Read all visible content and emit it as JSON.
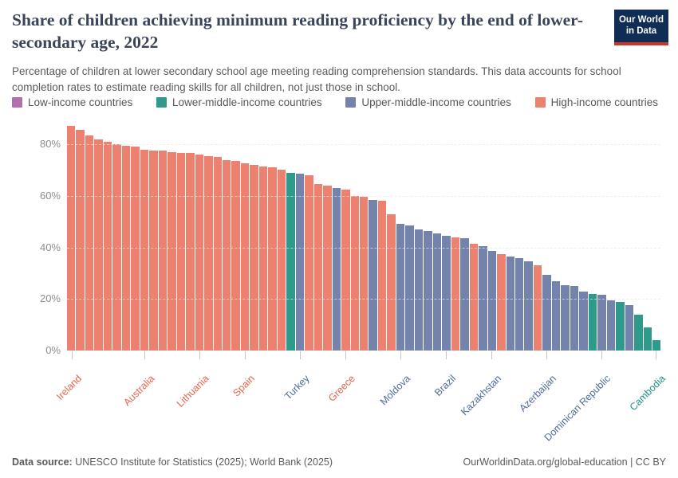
{
  "header": {
    "title": "Share of children achieving minimum reading proficiency by the end of lower-secondary age, 2022",
    "subtitle": "Percentage of children at lower secondary school age meeting reading comprehension standards. This data accounts for school completion rates to estimate reading skills for all children, not just those in school.",
    "logo": {
      "line1": "Our World",
      "line2": "in Data",
      "bg_color": "#102d55",
      "accent_color": "#c8352b"
    }
  },
  "legend": {
    "items": [
      {
        "label": "Low-income countries",
        "color": "#b16fad",
        "group": "li"
      },
      {
        "label": "Lower-middle-income countries",
        "color": "#2e9a8c",
        "group": "lm"
      },
      {
        "label": "Upper-middle-income countries",
        "color": "#7383ab",
        "group": "um"
      },
      {
        "label": "High-income countries",
        "color": "#ec8170",
        "group": "hi"
      }
    ]
  },
  "chart_data": {
    "type": "bar",
    "title": "Share of children achieving minimum reading proficiency by the end of lower-secondary age, 2022",
    "unit": "%",
    "ylim": [
      0,
      89.6
    ],
    "y_ticks": [
      0,
      20,
      40,
      60,
      80
    ],
    "y_tick_labels": [
      "0%",
      "20%",
      "40%",
      "60%",
      "80%"
    ],
    "grid": "horizontal dashed at 20/40/60/80, solid baseline at 0",
    "legend_position": "top",
    "n_bars": 65,
    "groups": {
      "li": {
        "name": "Low-income countries",
        "bar_color": "#b16fad",
        "label_color": "#9c5a97"
      },
      "lm": {
        "name": "Lower-middle-income countries",
        "bar_color": "#2e9a8c",
        "label_color": "#1a9183"
      },
      "um": {
        "name": "Upper-middle-income countries",
        "bar_color": "#7383ab",
        "label_color": "#4c6a9c"
      },
      "hi": {
        "name": "High-income countries",
        "bar_color": "#ec8170",
        "label_color": "#e8634d"
      }
    },
    "bars": [
      [
        87,
        "hi"
      ],
      [
        85.5,
        "hi"
      ],
      [
        83.5,
        "hi"
      ],
      [
        82,
        "hi"
      ],
      [
        81,
        "hi"
      ],
      [
        80,
        "hi"
      ],
      [
        79.5,
        "hi"
      ],
      [
        79,
        "hi"
      ],
      [
        78,
        "hi"
      ],
      [
        77.5,
        "hi"
      ],
      [
        77.5,
        "hi"
      ],
      [
        77,
        "hi"
      ],
      [
        76.5,
        "hi"
      ],
      [
        76.5,
        "hi"
      ],
      [
        76,
        "hi"
      ],
      [
        75.5,
        "hi"
      ],
      [
        75,
        "hi"
      ],
      [
        74,
        "hi"
      ],
      [
        73.5,
        "hi"
      ],
      [
        72.5,
        "hi"
      ],
      [
        72,
        "hi"
      ],
      [
        71.5,
        "hi"
      ],
      [
        71,
        "hi"
      ],
      [
        70,
        "hi"
      ],
      [
        69,
        "lm"
      ],
      [
        68.5,
        "um"
      ],
      [
        68,
        "hi"
      ],
      [
        64.5,
        "hi"
      ],
      [
        64,
        "hi"
      ],
      [
        63,
        "um"
      ],
      [
        62.5,
        "hi"
      ],
      [
        60,
        "hi"
      ],
      [
        59.5,
        "hi"
      ],
      [
        58.5,
        "um"
      ],
      [
        58,
        "hi"
      ],
      [
        53,
        "hi"
      ],
      [
        49,
        "um"
      ],
      [
        48.5,
        "um"
      ],
      [
        47,
        "um"
      ],
      [
        46.5,
        "um"
      ],
      [
        45.5,
        "um"
      ],
      [
        44.5,
        "um"
      ],
      [
        44,
        "hi"
      ],
      [
        43.5,
        "um"
      ],
      [
        41.5,
        "hi"
      ],
      [
        40.5,
        "um"
      ],
      [
        38.5,
        "um"
      ],
      [
        37.5,
        "hi"
      ],
      [
        36.5,
        "um"
      ],
      [
        36,
        "um"
      ],
      [
        34.5,
        "um"
      ],
      [
        33,
        "hi"
      ],
      [
        29.5,
        "um"
      ],
      [
        27,
        "um"
      ],
      [
        25.5,
        "um"
      ],
      [
        25,
        "um"
      ],
      [
        23,
        "um"
      ],
      [
        22,
        "lm"
      ],
      [
        21.5,
        "um"
      ],
      [
        19.5,
        "um"
      ],
      [
        19,
        "lm"
      ],
      [
        17.5,
        "um"
      ],
      [
        14,
        "lm"
      ],
      [
        9,
        "lm"
      ],
      [
        4,
        "lm"
      ]
    ],
    "x_tick_labels": [
      {
        "bar_index": 1,
        "label": "Ireland",
        "group": "hi"
      },
      {
        "bar_index": 9,
        "label": "Australia",
        "group": "hi"
      },
      {
        "bar_index": 15,
        "label": "Lithuania",
        "group": "hi"
      },
      {
        "bar_index": 20,
        "label": "Spain",
        "group": "hi"
      },
      {
        "bar_index": 26,
        "label": "Turkey",
        "group": "um"
      },
      {
        "bar_index": 31,
        "label": "Greece",
        "group": "hi"
      },
      {
        "bar_index": 37,
        "label": "Moldova",
        "group": "um"
      },
      {
        "bar_index": 42,
        "label": "Brazil",
        "group": "um"
      },
      {
        "bar_index": 47,
        "label": "Kazakhstan",
        "group": "um"
      },
      {
        "bar_index": 53,
        "label": "Azerbaijan",
        "group": "um"
      },
      {
        "bar_index": 59,
        "label": "Dominican Republic",
        "group": "um"
      },
      {
        "bar_index": 65,
        "label": "Cambodia",
        "group": "lm"
      }
    ]
  },
  "footer": {
    "datasource_label": "Data source:",
    "datasource_text": " UNESCO Institute for Statistics (2025); World Bank (2025)",
    "link_text": "OurWorldinData.org/global-education | CC BY"
  }
}
